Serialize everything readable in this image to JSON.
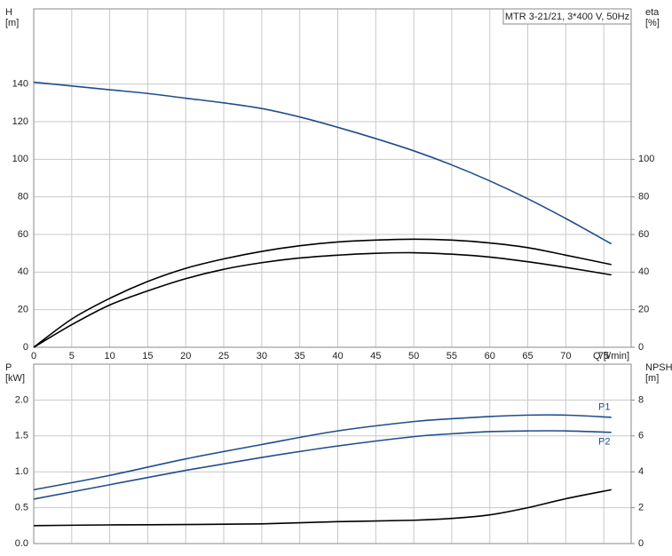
{
  "chart_data": [
    {
      "type": "line",
      "annotation": "MTR 3-21/21, 3*400 V, 50Hz",
      "ylabel": [
        "H",
        "[m]"
      ],
      "y2label": [
        "eta",
        "[%]"
      ],
      "xlabel": "Q [l/min]",
      "x": [
        0,
        5,
        10,
        15,
        20,
        25,
        30,
        35,
        40,
        45,
        50,
        55,
        60,
        65,
        70,
        76
      ],
      "xlim": [
        0,
        78.6
      ],
      "xticks": [
        0,
        5,
        10,
        15,
        20,
        25,
        30,
        35,
        40,
        45,
        50,
        55,
        60,
        65,
        70,
        75
      ],
      "ylim": [
        0,
        180
      ],
      "yticks": [
        0,
        20,
        40,
        60,
        80,
        100,
        120,
        140
      ],
      "y2lim": [
        0,
        180
      ],
      "y2ticks": [
        0,
        20,
        40,
        60,
        80,
        100
      ],
      "grid": true,
      "series": [
        {
          "color": "#1f4e8c",
          "values": [
            141,
            139,
            137,
            135,
            132.5,
            130,
            127,
            122.5,
            117,
            111,
            104.5,
            97,
            88.5,
            79,
            68.5,
            55
          ]
        },
        {
          "color": "#000000",
          "axis": "y2",
          "values": [
            0,
            15,
            26,
            35,
            42,
            47,
            51,
            54,
            56,
            57,
            57.5,
            57,
            55.5,
            53,
            49,
            44
          ]
        },
        {
          "color": "#000000",
          "axis": "y2",
          "values": [
            0,
            12,
            22.5,
            30,
            36.5,
            41.5,
            45,
            47.5,
            49,
            50,
            50.3,
            49.5,
            48,
            45.5,
            42.5,
            38.5
          ]
        }
      ]
    },
    {
      "type": "line",
      "ylabel": [
        "P",
        "[kW]"
      ],
      "y2label": [
        "NPSH",
        "[m]"
      ],
      "x": [
        0,
        10,
        20,
        30,
        40,
        50,
        55,
        60,
        65,
        70,
        76
      ],
      "xlim": [
        0,
        78.6
      ],
      "xticks": [
        0,
        5,
        10,
        15,
        20,
        25,
        30,
        35,
        40,
        45,
        50,
        55,
        60,
        65,
        70,
        75
      ],
      "show_xtick_labels": false,
      "ylim": [
        0,
        2.5
      ],
      "yticks": [
        {
          "value": 0,
          "label": "0.0"
        },
        0.5,
        {
          "value": 1,
          "label": "1.0"
        },
        1.5,
        {
          "value": 2,
          "label": "2.0"
        }
      ],
      "y2lim": [
        0,
        10
      ],
      "y2ticks": [
        0,
        2,
        4,
        6,
        8
      ],
      "grid": true,
      "series": [
        {
          "name": "P1",
          "color": "#1f4e8c",
          "values": [
            0.75,
            0.95,
            1.18,
            1.38,
            1.57,
            1.7,
            1.74,
            1.77,
            1.79,
            1.79,
            1.76
          ]
        },
        {
          "name": "P2",
          "color": "#1f4e8c",
          "values": [
            0.62,
            0.82,
            1.02,
            1.2,
            1.36,
            1.49,
            1.53,
            1.56,
            1.57,
            1.57,
            1.55
          ]
        },
        {
          "color": "#000000",
          "axis": "y2",
          "values": [
            1.0,
            1.04,
            1.06,
            1.1,
            1.22,
            1.3,
            1.4,
            1.6,
            2.0,
            2.5,
            3.0
          ]
        }
      ]
    }
  ]
}
